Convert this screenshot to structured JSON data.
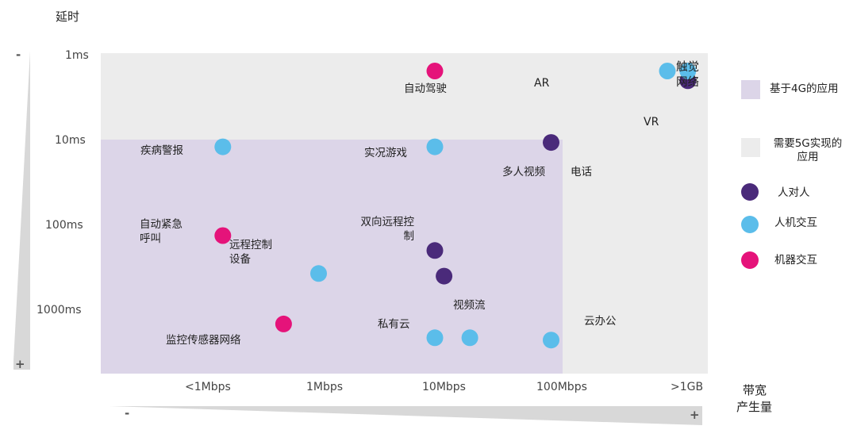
{
  "chart_data": {
    "type": "scatter",
    "ylabel": "延时",
    "xlabel_lines": [
      "带宽",
      "产生量"
    ],
    "y_ticks": [
      "1ms",
      "10ms",
      "100ms",
      "1000ms"
    ],
    "x_ticks": [
      "<1Mbps",
      "1Mbps",
      "10Mbps",
      "100Mbps",
      ">1GB"
    ],
    "y_axis_signs": {
      "top": "-",
      "bottom": "+"
    },
    "x_axis_signs": {
      "left": "-",
      "right": "+"
    },
    "regions": [
      {
        "name": "基于4G的应用",
        "color": "#dcd5e8",
        "x_range": [
          "<1Mbps",
          "100Mbps"
        ],
        "y_range": [
          "10ms",
          "1000ms"
        ]
      },
      {
        "name": "需要5G实现的应用",
        "color": "#ececec"
      }
    ],
    "series": [
      {
        "name": "人对人",
        "color": "#4a2a7a",
        "points": [
          {
            "x": 100,
            "y": 8,
            "label": "多人视频"
          },
          {
            "x": 10,
            "y": 150,
            "label": "双向远程控制"
          },
          {
            "x": 12,
            "y": 300,
            "label": ""
          },
          {
            "x": 1500,
            "y": 1.5,
            "label": ""
          }
        ]
      },
      {
        "name": "人机交互",
        "color": "#5bbdea",
        "points": [
          {
            "x": 0.15,
            "y": 9,
            "label": "疾病警报"
          },
          {
            "x": 10,
            "y": 9,
            "label": "实况游戏"
          },
          {
            "x": 1,
            "y": 280,
            "label": "远程控制设备"
          },
          {
            "x": 10,
            "y": 1600,
            "label": "私有云"
          },
          {
            "x": 20,
            "y": 1600,
            "label": "视频流"
          },
          {
            "x": 100,
            "y": 1700,
            "label": "云办公"
          },
          {
            "x": 1000,
            "y": 1.15,
            "label": ""
          },
          {
            "x": 1500,
            "y": 1.15,
            "label": "触觉网络"
          }
        ]
      },
      {
        "name": "机器交互",
        "color": "#e5137a",
        "points": [
          {
            "x": 10,
            "y": 1.15,
            "label": "自动驾驶"
          },
          {
            "x": 0.15,
            "y": 100,
            "label": "自动紧急呼叫"
          },
          {
            "x": 0.5,
            "y": 1100,
            "label": "监控传感器网络"
          }
        ]
      }
    ],
    "text_annotations": [
      "AR",
      "VR",
      "电话"
    ],
    "legend": {
      "placement": "right",
      "items": [
        {
          "label": "基于4G的应用",
          "kind": "region",
          "color": "#dcd5e8"
        },
        {
          "label": "需要5G实现的应用",
          "kind": "region",
          "color": "#ececec"
        },
        {
          "label": "人对人",
          "kind": "point",
          "color": "#4a2a7a"
        },
        {
          "label": "人机交互",
          "kind": "point",
          "color": "#5bbdea"
        },
        {
          "label": "机器交互",
          "kind": "point",
          "color": "#e5137a"
        }
      ]
    }
  }
}
